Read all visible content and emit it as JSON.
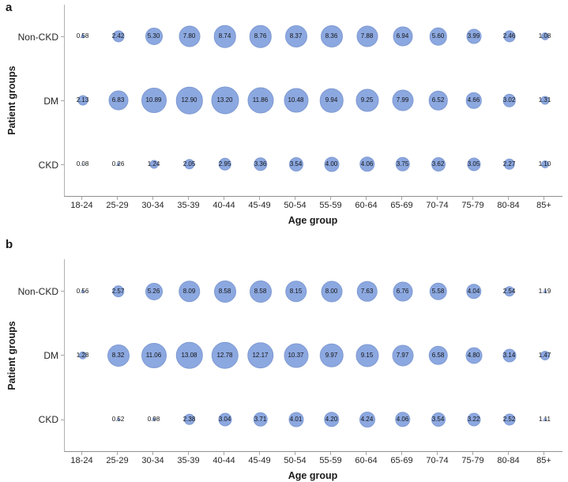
{
  "colors": {
    "bubble_fill": "#8ca8e0",
    "bubble_border": "#7f9ad2",
    "axis_line": "#b0b0b0",
    "tick": "#a6a6a6",
    "text": "#262626"
  },
  "chart_data": {
    "type": "scatter",
    "subtype": "bubble",
    "grid": false,
    "legend": "none",
    "panels": [
      {
        "panel_label": "a",
        "y_axis_title": "Patient groups",
        "x_axis_title": "Age group",
        "categories": [
          "18-24",
          "25-29",
          "30-34",
          "35-39",
          "40-44",
          "45-49",
          "50-54",
          "55-59",
          "60-64",
          "65-69",
          "70-74",
          "75-79",
          "80-84",
          "85+"
        ],
        "rows": [
          {
            "label": "Non-CKD",
            "values": [
              "0.58",
              "2.42",
              "5.30",
              "7.80",
              "8.74",
              "8.76",
              "8.37",
              "8.36",
              "7.88",
              "6.94",
              "5.60",
              "3.99",
              "2.46",
              "1.08"
            ],
            "sizes": [
              5,
              15,
              22,
              27,
              28.5,
              28.5,
              28,
              28,
              27,
              25,
              22.5,
              19,
              15,
              10
            ]
          },
          {
            "label": "DM",
            "values": [
              "2.13",
              "6.83",
              "10.89",
              "12.90",
              "13.20",
              "11.86",
              "10.48",
              "9.94",
              "9.25",
              "7.99",
              "6.52",
              "4.66",
              "3.02",
              "1.31"
            ],
            "sizes": [
              13,
              25,
              32,
              34.5,
              35,
              33,
              31,
              30.5,
              29,
              27,
              24.5,
              20.5,
              16.5,
              11
            ]
          },
          {
            "label": "CKD",
            "values": [
              "0.08",
              "0.26",
              "1.24",
              "2.05",
              "2.95",
              "3.36",
              "3.54",
              "4.00",
              "4.06",
              "3.75",
              "3.62",
              "3.05",
              "2.27",
              "1.10"
            ],
            "sizes": [
              2.5,
              4.5,
              11,
              13.5,
              16.5,
              17.5,
              18,
              19,
              19.5,
              18.5,
              18,
              17,
              14.5,
              10
            ]
          }
        ]
      },
      {
        "panel_label": "b",
        "y_axis_title": "Patient groups",
        "x_axis_title": "Age group",
        "categories": [
          "18-24",
          "25-29",
          "30-34",
          "35-39",
          "40-44",
          "45-49",
          "50-54",
          "55-59",
          "60-64",
          "65-69",
          "70-74",
          "75-79",
          "80-84",
          "85+"
        ],
        "rows": [
          {
            "label": "Non-CKD",
            "values": [
              "0.56",
              "2.57",
              "5.26",
              "8.09",
              "8.58",
              "8.58",
              "8.15",
              "8.00",
              "7.63",
              "6.76",
              "5.58",
              "4.04",
              "2.54",
              "1.19"
            ],
            "sizes": [
              4.5,
              15.5,
              22,
              27.5,
              28,
              28,
              27.5,
              27,
              26.5,
              25,
              22.5,
              19.5,
              13.5,
              4
            ]
          },
          {
            "label": "DM",
            "values": [
              "1.28",
              "8.32",
              "11.06",
              "13.08",
              "12.78",
              "12.17",
              "10.37",
              "9.97",
              "9.15",
              "7.97",
              "6.58",
              "4.80",
              "3.14",
              "1.47"
            ],
            "sizes": [
              10.5,
              28,
              32,
              34.5,
              34.5,
              33.5,
              31,
              30.5,
              29,
              27,
              24.5,
              21,
              17,
              12
            ]
          },
          {
            "label": "CKD",
            "values": [
              null,
              "0.52",
              "0.98",
              "2.38",
              "3.04",
              "3.71",
              "4.01",
              "4.20",
              "4.24",
              "4.06",
              "3.54",
              "3.22",
              "2.52",
              "1.11"
            ],
            "sizes": [
              null,
              4,
              4.5,
              14.5,
              17,
              18.5,
              19,
              19.5,
              20,
              19.5,
              18,
              17,
              15,
              4
            ]
          }
        ]
      }
    ]
  }
}
